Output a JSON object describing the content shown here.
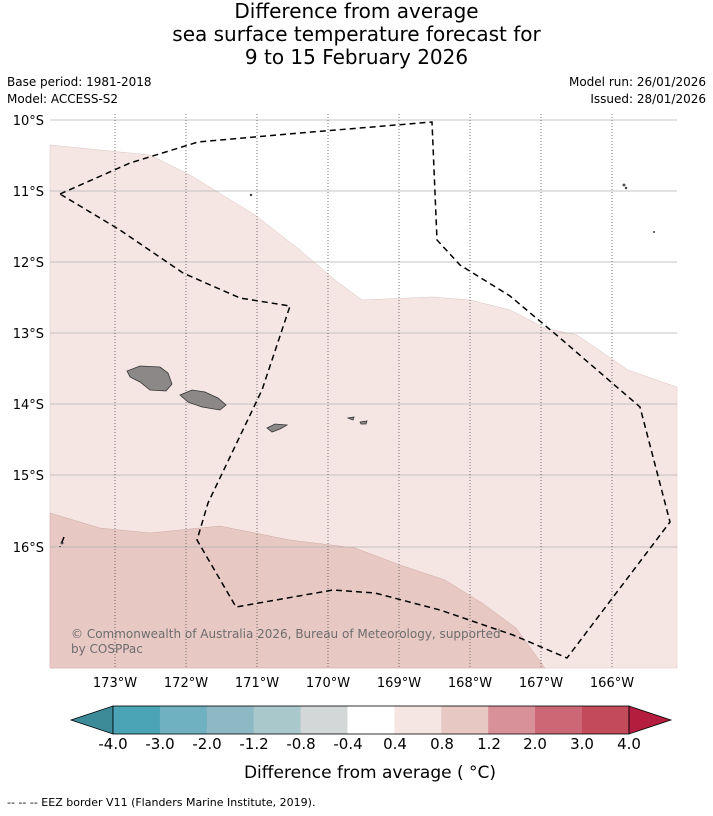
{
  "header": {
    "title_lines": [
      "Difference from average",
      "sea surface temperature forecast for",
      "9 to 15 February 2026"
    ],
    "base_period": "Base period: 1981-2018",
    "model": "Model: ACCESS-S2",
    "model_run": "Model run: 26/01/2026",
    "issued": "Issued: 28/01/2026"
  },
  "map": {
    "lat_ticks": [
      "10°S",
      "11°S",
      "12°S",
      "13°S",
      "14°S",
      "15°S",
      "16°S"
    ],
    "lon_ticks": [
      "173°W",
      "172°W",
      "171°W",
      "170°W",
      "169°W",
      "168°W",
      "167°W",
      "166°W"
    ],
    "copyright_line1": "© Commonwealth of Australia 2026, Bureau of Meteorology, supported",
    "copyright_line2": "by COSPPac",
    "colors": {
      "band_0_4_0_8": "#f5e6e4",
      "band_0_8_1_2": "#e8c8c3",
      "land": "#8c8888"
    }
  },
  "colorbar": {
    "labels": [
      "-4.0",
      "-3.0",
      "-2.0",
      "-1.2",
      "-0.8",
      "-0.4",
      "0.4",
      "0.8",
      "1.2",
      "2.0",
      "3.0",
      "4.0"
    ],
    "colors": [
      "#3d8a98",
      "#4aa4b6",
      "#6fb0c1",
      "#8db9c4",
      "#a9c8cc",
      "#d3d7d7",
      "#ffffff",
      "#f5e6e4",
      "#e8c8c3",
      "#d99199",
      "#cc6775",
      "#c24a5a",
      "#b41d3d"
    ],
    "title": "Difference from average ( °C)"
  },
  "footer": {
    "legend_text": "--  --  -- EEZ border V11 (Flanders Marine Institute, 2019)."
  }
}
